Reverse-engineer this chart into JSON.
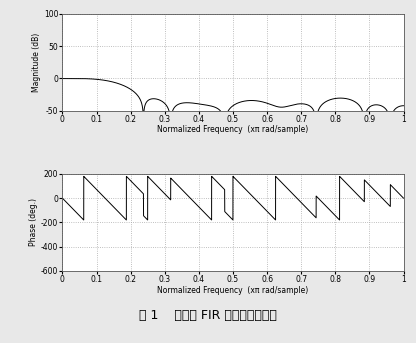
{
  "xlabel_top": "Normalized Frequency  (xπ rad/sample)",
  "xlabel_bottom": "Normalized Frequency  (xπ rad/sample)",
  "ylabel_top": "Magnitude (dB)",
  "ylabel_bottom": "Phase (deg.)",
  "fig_caption": "图 1    量化后 FIR 滤波器频率响应",
  "mag_ylim": [
    -50,
    100
  ],
  "mag_yticks": [
    -50,
    0,
    50,
    100
  ],
  "phase_ylim": [
    -600,
    200
  ],
  "phase_yticks": [
    -600,
    -400,
    -200,
    0,
    200
  ],
  "xlim": [
    0,
    1.0
  ],
  "xticks": [
    0,
    0.1,
    0.2,
    0.3,
    0.4,
    0.5,
    0.6,
    0.7,
    0.8,
    0.9,
    1.0
  ],
  "xticklabels": [
    "0",
    "0.1",
    "0.2",
    "0.3",
    "0.4",
    "0.5",
    "0.6",
    "0.7",
    "0.8",
    "0.9",
    "1"
  ],
  "background_color": "#ffffff",
  "line_color": "#000000",
  "grid_color": "#aaaaaa",
  "fig_bg": "#e8e8e8"
}
